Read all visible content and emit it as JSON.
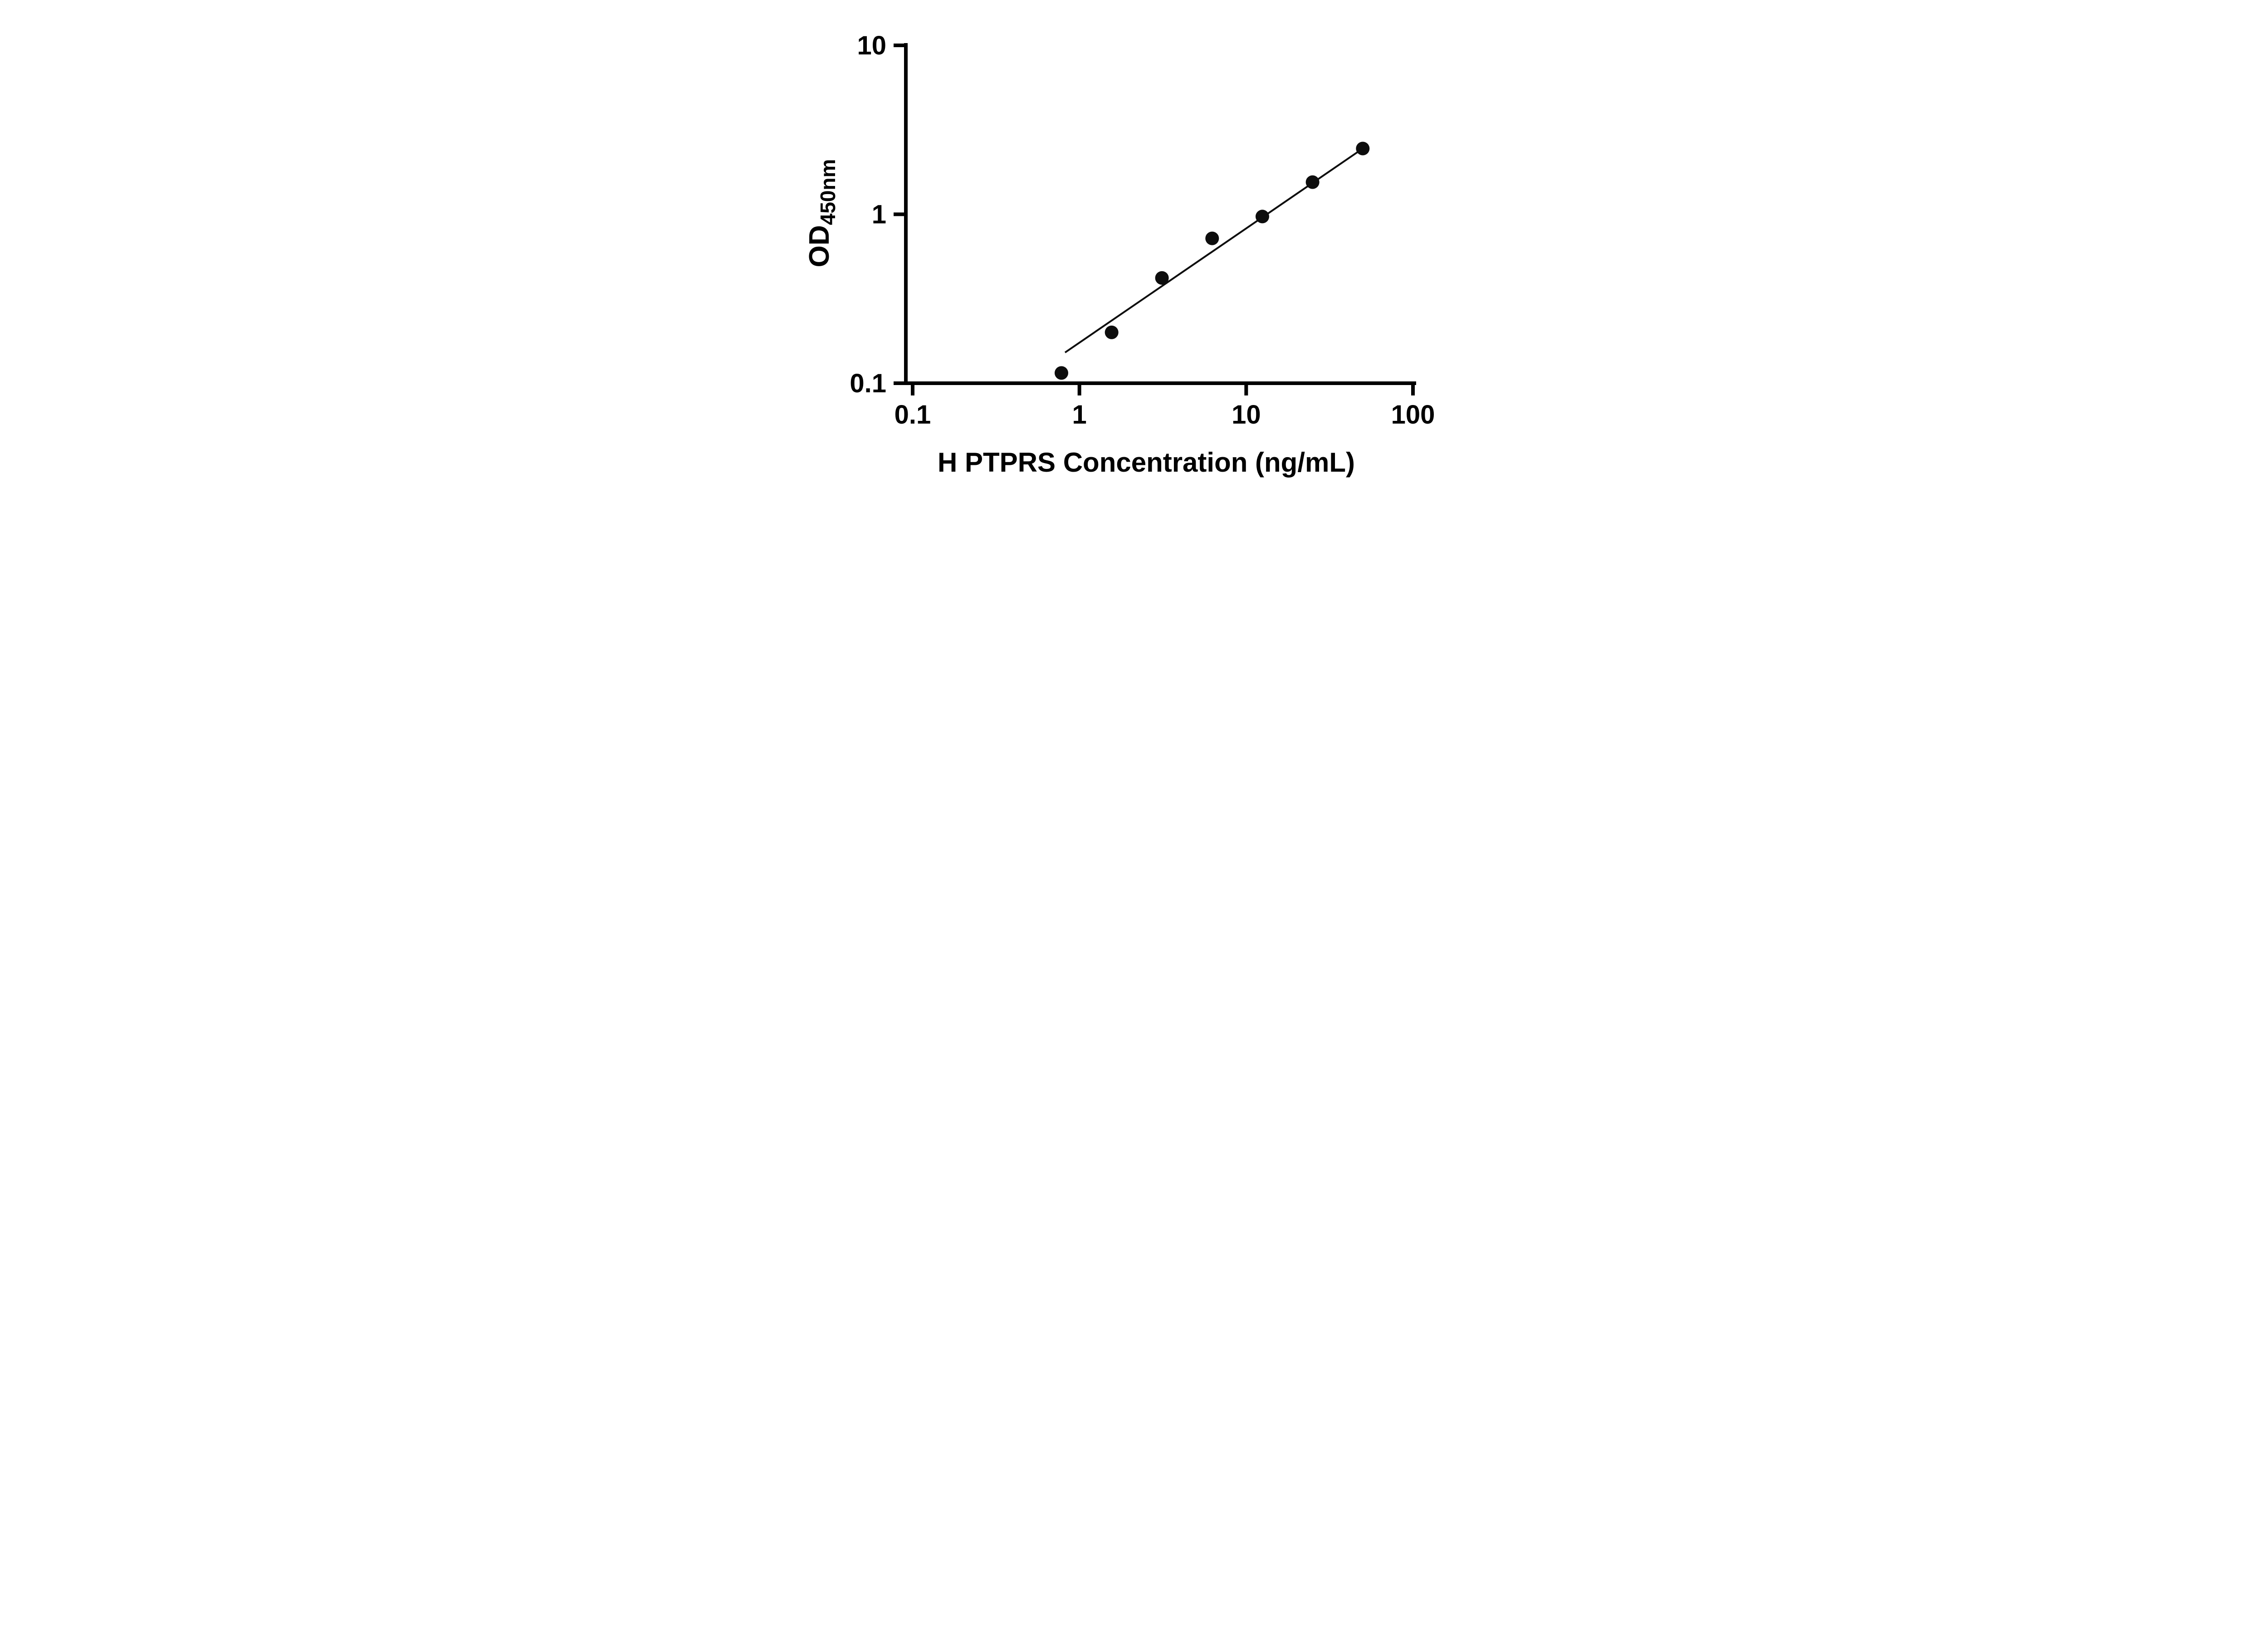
{
  "figure": {
    "background": "#ffffff"
  },
  "chart_data": {
    "type": "scatter",
    "title": "",
    "xlabel": "H PTPRS Concentration (ng/mL)",
    "ylabel": "OD450nm",
    "ylabel_main": "OD",
    "ylabel_sub": "450nm",
    "x_scale": "log",
    "y_scale": "log",
    "xlim": [
      0.1,
      100
    ],
    "ylim": [
      0.1,
      10
    ],
    "x_tick_values": [
      0.1,
      1,
      10,
      100
    ],
    "x_tick_labels": [
      "0.1",
      "1",
      "10",
      "100"
    ],
    "y_tick_values": [
      0.1,
      1,
      10
    ],
    "y_tick_labels": [
      "0.1",
      "1",
      "10"
    ],
    "grid": false,
    "legend": false,
    "axis_color": "#000000",
    "marker_color": "#0d0d0d",
    "line_color": "#0d0d0d",
    "points": [
      {
        "x": 0.78,
        "y": 0.115
      },
      {
        "x": 1.56,
        "y": 0.2
      },
      {
        "x": 3.125,
        "y": 0.42
      },
      {
        "x": 6.25,
        "y": 0.72
      },
      {
        "x": 12.5,
        "y": 0.97
      },
      {
        "x": 25,
        "y": 1.55
      },
      {
        "x": 50,
        "y": 2.45
      }
    ],
    "trendline": {
      "x1": 0.82,
      "y1": 0.152,
      "x2": 50,
      "y2": 2.45
    }
  }
}
